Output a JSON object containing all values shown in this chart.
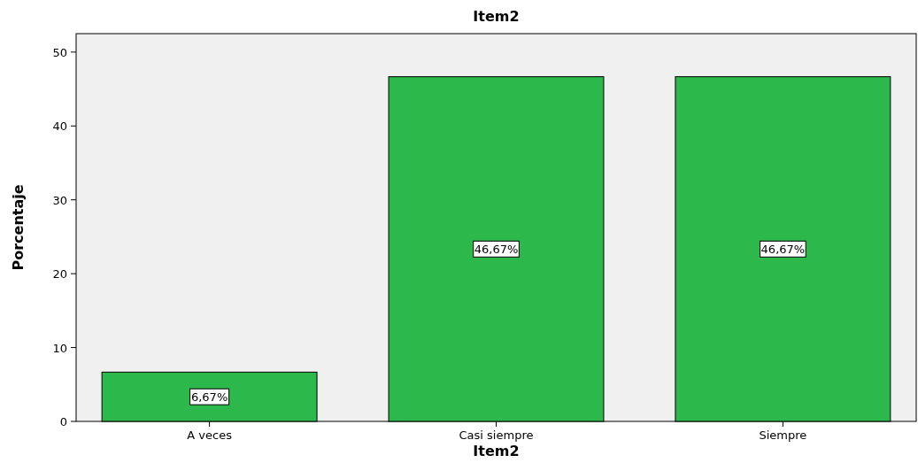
{
  "chart_data": {
    "type": "bar",
    "title": "Item2",
    "xlabel": "Item2",
    "ylabel": "Porcentaje",
    "categories": [
      "A veces",
      "Casi siempre",
      "Siempre"
    ],
    "values": [
      6.67,
      46.67,
      46.67
    ],
    "value_labels": [
      "6,67%",
      "46,67%",
      "46,67%"
    ],
    "color": "#2db84b",
    "ylim": [
      0,
      52.5
    ],
    "yticks": [
      0,
      10,
      20,
      30,
      40,
      50
    ],
    "grid": false
  }
}
